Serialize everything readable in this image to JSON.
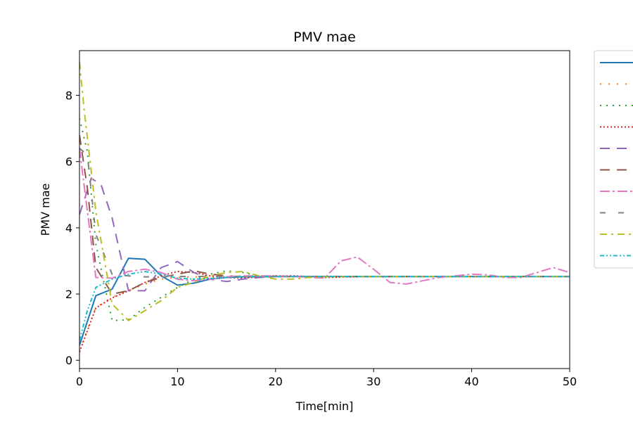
{
  "chart_data": {
    "type": "line",
    "title": "PMV mae",
    "xlabel": "Time[min]",
    "ylabel": "PMV mae",
    "xlim": [
      0,
      50
    ],
    "ylim": [
      -0.25,
      9.35
    ],
    "xticks": [
      0,
      10,
      20,
      30,
      40,
      50
    ],
    "yticks": [
      0,
      2,
      4,
      6,
      8
    ],
    "grid": false,
    "legend_position": "outside-right",
    "series": [
      {
        "color": "#1f77b4",
        "dash": "",
        "x": [
          0,
          1.67,
          3.33,
          5,
          6.67,
          8.33,
          10,
          11.67,
          13.33,
          15,
          16.67,
          18.33,
          20,
          25,
          30,
          35,
          40,
          45,
          50
        ],
        "y": [
          0.45,
          1.95,
          2.15,
          3.08,
          3.05,
          2.55,
          2.27,
          2.33,
          2.45,
          2.5,
          2.52,
          2.52,
          2.53,
          2.53,
          2.53,
          2.53,
          2.53,
          2.53,
          2.53
        ]
      },
      {
        "color": "#ff7f0e",
        "dash": "2,10",
        "x": [
          0,
          1.67,
          3.33,
          5,
          6.67,
          8.33,
          10,
          11.67,
          13.33,
          15,
          16.67,
          18.33,
          20,
          25,
          30,
          35,
          40,
          45,
          50
        ],
        "y": [
          0.3,
          1.6,
          1.9,
          2.1,
          2.3,
          2.45,
          2.5,
          2.52,
          2.52,
          2.53,
          2.53,
          2.53,
          2.53,
          2.53,
          2.53,
          2.53,
          2.53,
          2.53,
          2.53
        ]
      },
      {
        "color": "#2ca02c",
        "dash": "2,7",
        "x": [
          0,
          0.8,
          1.67,
          3.33,
          5,
          6.67,
          8.33,
          10,
          11.67,
          13.33,
          15,
          16.67,
          18.33,
          20,
          25,
          30,
          35,
          40,
          45,
          50
        ],
        "y": [
          7.3,
          6.3,
          3.5,
          1.2,
          1.22,
          1.6,
          1.9,
          2.2,
          2.45,
          2.6,
          2.7,
          2.65,
          2.55,
          2.52,
          2.53,
          2.53,
          2.53,
          2.53,
          2.53,
          2.53
        ]
      },
      {
        "color": "#d62728",
        "dash": "2,3",
        "x": [
          0,
          1.67,
          3.33,
          5,
          6.67,
          8.33,
          10,
          11.67,
          13.33,
          15,
          16.67,
          18.33,
          20,
          22,
          25,
          30,
          35,
          40,
          45,
          50
        ],
        "y": [
          0.25,
          1.58,
          1.88,
          2.1,
          2.35,
          2.55,
          2.68,
          2.65,
          2.55,
          2.5,
          2.48,
          2.52,
          2.55,
          2.55,
          2.5,
          2.53,
          2.53,
          2.53,
          2.53,
          2.53
        ]
      },
      {
        "color": "#9467bd",
        "dash": "14,10",
        "x": [
          0,
          1.2,
          2.2,
          3.33,
          5,
          6.67,
          8.33,
          10,
          11.67,
          13.33,
          15,
          16.67,
          18.33,
          20,
          25,
          30,
          35,
          40,
          45,
          50
        ],
        "y": [
          4.4,
          5.5,
          5.3,
          4.3,
          2.1,
          2.1,
          2.8,
          2.98,
          2.65,
          2.45,
          2.38,
          2.45,
          2.5,
          2.53,
          2.53,
          2.53,
          2.53,
          2.53,
          2.53,
          2.53
        ]
      },
      {
        "color": "#8c564b",
        "dash": "14,10",
        "x": [
          0,
          0.8,
          1.67,
          3.33,
          5,
          6.67,
          8.33,
          10,
          11.67,
          13.33,
          15,
          16.67,
          18.33,
          20,
          25,
          30,
          35,
          40,
          45,
          50
        ],
        "y": [
          6.8,
          5.2,
          2.8,
          2.0,
          2.1,
          2.35,
          2.5,
          2.6,
          2.7,
          2.6,
          2.55,
          2.52,
          2.52,
          2.53,
          2.53,
          2.53,
          2.53,
          2.53,
          2.53,
          2.53
        ]
      },
      {
        "color": "#e377c2",
        "dash": "14,4,3,4",
        "x": [
          0,
          0.8,
          1.67,
          3.33,
          5,
          6.67,
          8.33,
          10,
          11.67,
          13.33,
          15,
          16.67,
          18.33,
          20,
          22,
          25,
          26.67,
          28.33,
          30,
          31.67,
          33.33,
          35,
          36.67,
          38.33,
          40,
          41.67,
          43.33,
          45,
          46.67,
          48.33,
          50
        ],
        "y": [
          6.4,
          4.5,
          2.5,
          2.48,
          2.68,
          2.75,
          2.65,
          2.45,
          2.4,
          2.45,
          2.52,
          2.55,
          2.55,
          2.55,
          2.53,
          2.48,
          3.0,
          3.12,
          2.75,
          2.35,
          2.3,
          2.4,
          2.5,
          2.55,
          2.6,
          2.58,
          2.5,
          2.5,
          2.65,
          2.8,
          2.65
        ]
      },
      {
        "color": "#7f7f7f",
        "dash": "8,18",
        "x": [
          0,
          0.8,
          1.67,
          3.33,
          5,
          6.67,
          8.33,
          10,
          11.67,
          13.33,
          15,
          16.67,
          18.33,
          20,
          25,
          30,
          35,
          40,
          45,
          50
        ],
        "y": [
          6.4,
          6.2,
          3.8,
          2.6,
          2.55,
          2.52,
          2.52,
          2.53,
          2.53,
          2.53,
          2.53,
          2.53,
          2.53,
          2.53,
          2.53,
          2.53,
          2.53,
          2.53,
          2.53,
          2.53
        ]
      },
      {
        "color": "#bcbd22",
        "dash": "10,6,3,6",
        "x": [
          0,
          0.5,
          1.67,
          3.33,
          5,
          6.67,
          8.33,
          10,
          11.67,
          13.33,
          15,
          16.67,
          18.33,
          20,
          21.67,
          23.33,
          25,
          30,
          35,
          40,
          45,
          50
        ],
        "y": [
          9.0,
          7.5,
          4.5,
          1.7,
          1.2,
          1.5,
          1.8,
          2.2,
          2.35,
          2.55,
          2.65,
          2.68,
          2.55,
          2.45,
          2.45,
          2.5,
          2.52,
          2.53,
          2.53,
          2.53,
          2.53,
          2.53
        ]
      },
      {
        "color": "#17becf",
        "dash": "6,3,2,3,2,3",
        "x": [
          0,
          0.8,
          1.67,
          3.33,
          5,
          6.67,
          8.33,
          10,
          11.67,
          13.33,
          15,
          16.67,
          18.33,
          20,
          25,
          30,
          35,
          40,
          45,
          50
        ],
        "y": [
          0.6,
          1.5,
          2.2,
          2.45,
          2.6,
          2.68,
          2.6,
          2.48,
          2.45,
          2.47,
          2.5,
          2.52,
          2.53,
          2.53,
          2.53,
          2.53,
          2.53,
          2.53,
          2.53,
          2.53
        ]
      }
    ]
  }
}
